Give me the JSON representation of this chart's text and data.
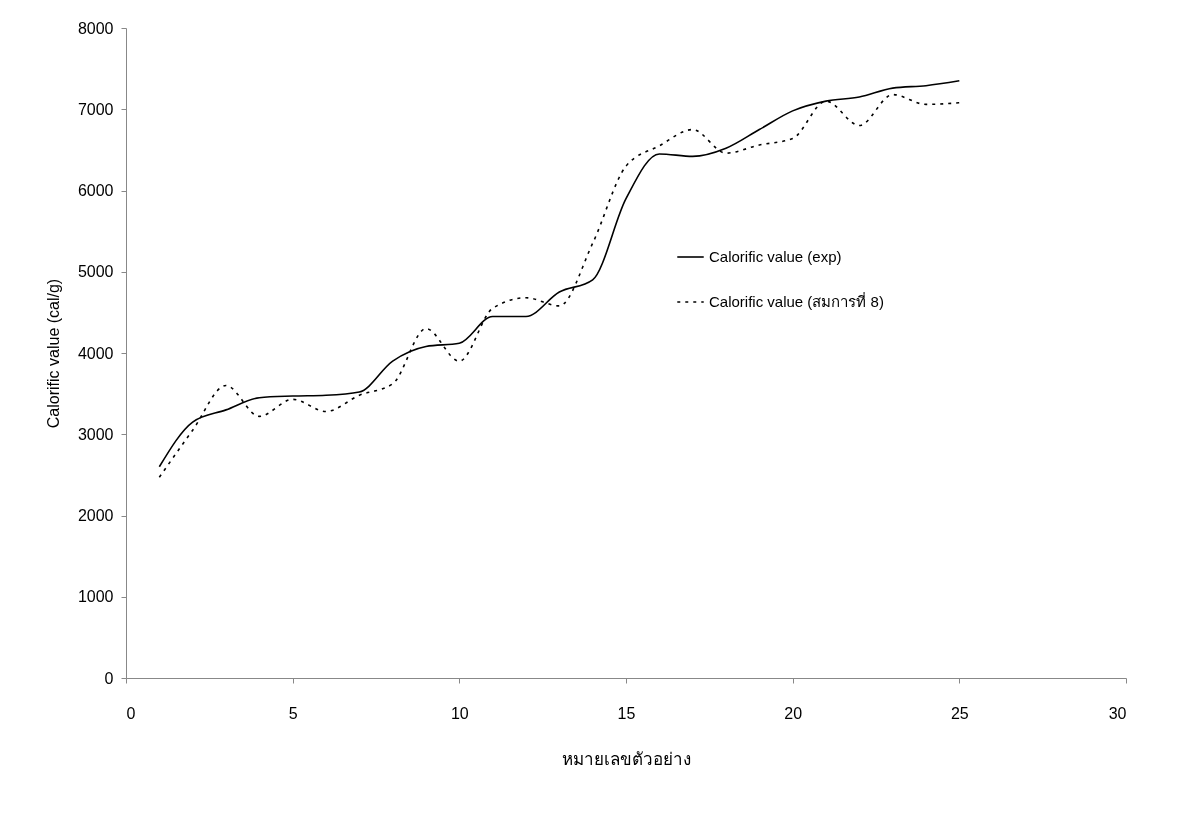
{
  "chart_data": {
    "type": "line",
    "xlabel": "หมายเลขตัวอย่าง",
    "ylabel": "Calorific value (cal/g)",
    "x": [
      1,
      2,
      3,
      4,
      5,
      6,
      7,
      8,
      9,
      10,
      11,
      12,
      13,
      14,
      15,
      16,
      17,
      18,
      19,
      20,
      21,
      22,
      23,
      24,
      25
    ],
    "series": [
      {
        "name": "Calorific value (exp)",
        "color": "#000000",
        "line_style": "solid",
        "values": [
          2600,
          3150,
          3300,
          3450,
          3470,
          3480,
          3520,
          3900,
          4080,
          4120,
          4450,
          4450,
          4750,
          4900,
          5900,
          6450,
          6420,
          6520,
          6750,
          6980,
          7100,
          7150,
          7260,
          7290,
          7350
        ]
      },
      {
        "name": "Calorific value (สมการที่ 8)",
        "color": "#000000",
        "line_style": "dotted",
        "values": [
          2470,
          3050,
          3600,
          3220,
          3430,
          3280,
          3480,
          3620,
          4300,
          3900,
          4550,
          4680,
          4580,
          5350,
          6300,
          6550,
          6750,
          6460,
          6560,
          6640,
          7100,
          6800,
          7180,
          7060,
          7080
        ]
      }
    ],
    "xlim": [
      0,
      30
    ],
    "xticks": [
      0,
      5,
      10,
      15,
      20,
      25,
      30
    ],
    "ylim": [
      0,
      8000
    ],
    "yticks": [
      0,
      1000,
      2000,
      3000,
      4000,
      5000,
      6000,
      7000,
      8000
    ],
    "grid": false,
    "legend": "right",
    "marker": "none"
  }
}
